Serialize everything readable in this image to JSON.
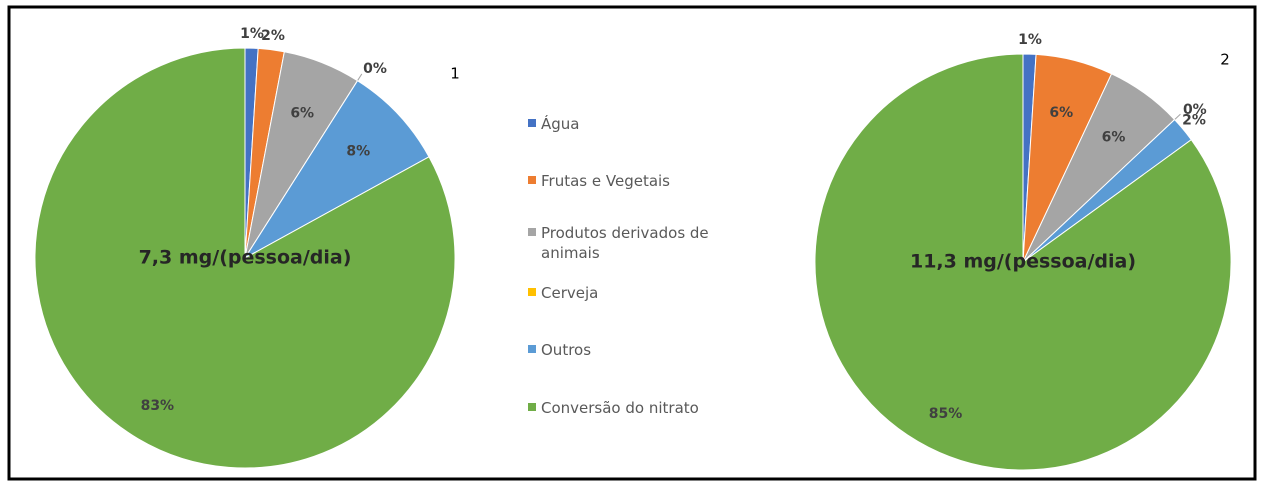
{
  "chart_data": [
    {
      "type": "pie",
      "title": "1",
      "annotation": "7,3 mg/(pessoa/dia)",
      "categories": [
        "Água",
        "Frutas e Vegetais",
        "Produtos derivados de animais",
        "Cerveja",
        "Outros",
        "Conversão do nitrato"
      ],
      "values": [
        1,
        2,
        6,
        0,
        8,
        83
      ],
      "value_labels": [
        "1%",
        "2%",
        "6%",
        "0%",
        "8%",
        "83%"
      ],
      "colors": [
        "#4472c4",
        "#ed7d31",
        "#a5a5a5",
        "#ffc000",
        "#5b9bd5",
        "#70ad47"
      ],
      "legend": "center"
    },
    {
      "type": "pie",
      "title": "2",
      "annotation": "11,3 mg/(pessoa/dia)",
      "categories": [
        "Água",
        "Frutas e Vegetais",
        "Produtos derivados de animais",
        "Cerveja",
        "Outros",
        "Conversão do nitrato"
      ],
      "values": [
        1,
        6,
        6,
        0,
        2,
        85
      ],
      "value_labels": [
        "1%",
        "6%",
        "6%",
        "0%",
        "2%",
        "85%"
      ],
      "colors": [
        "#4472c4",
        "#ed7d31",
        "#a5a5a5",
        "#ffc000",
        "#5b9bd5",
        "#70ad47"
      ]
    }
  ]
}
